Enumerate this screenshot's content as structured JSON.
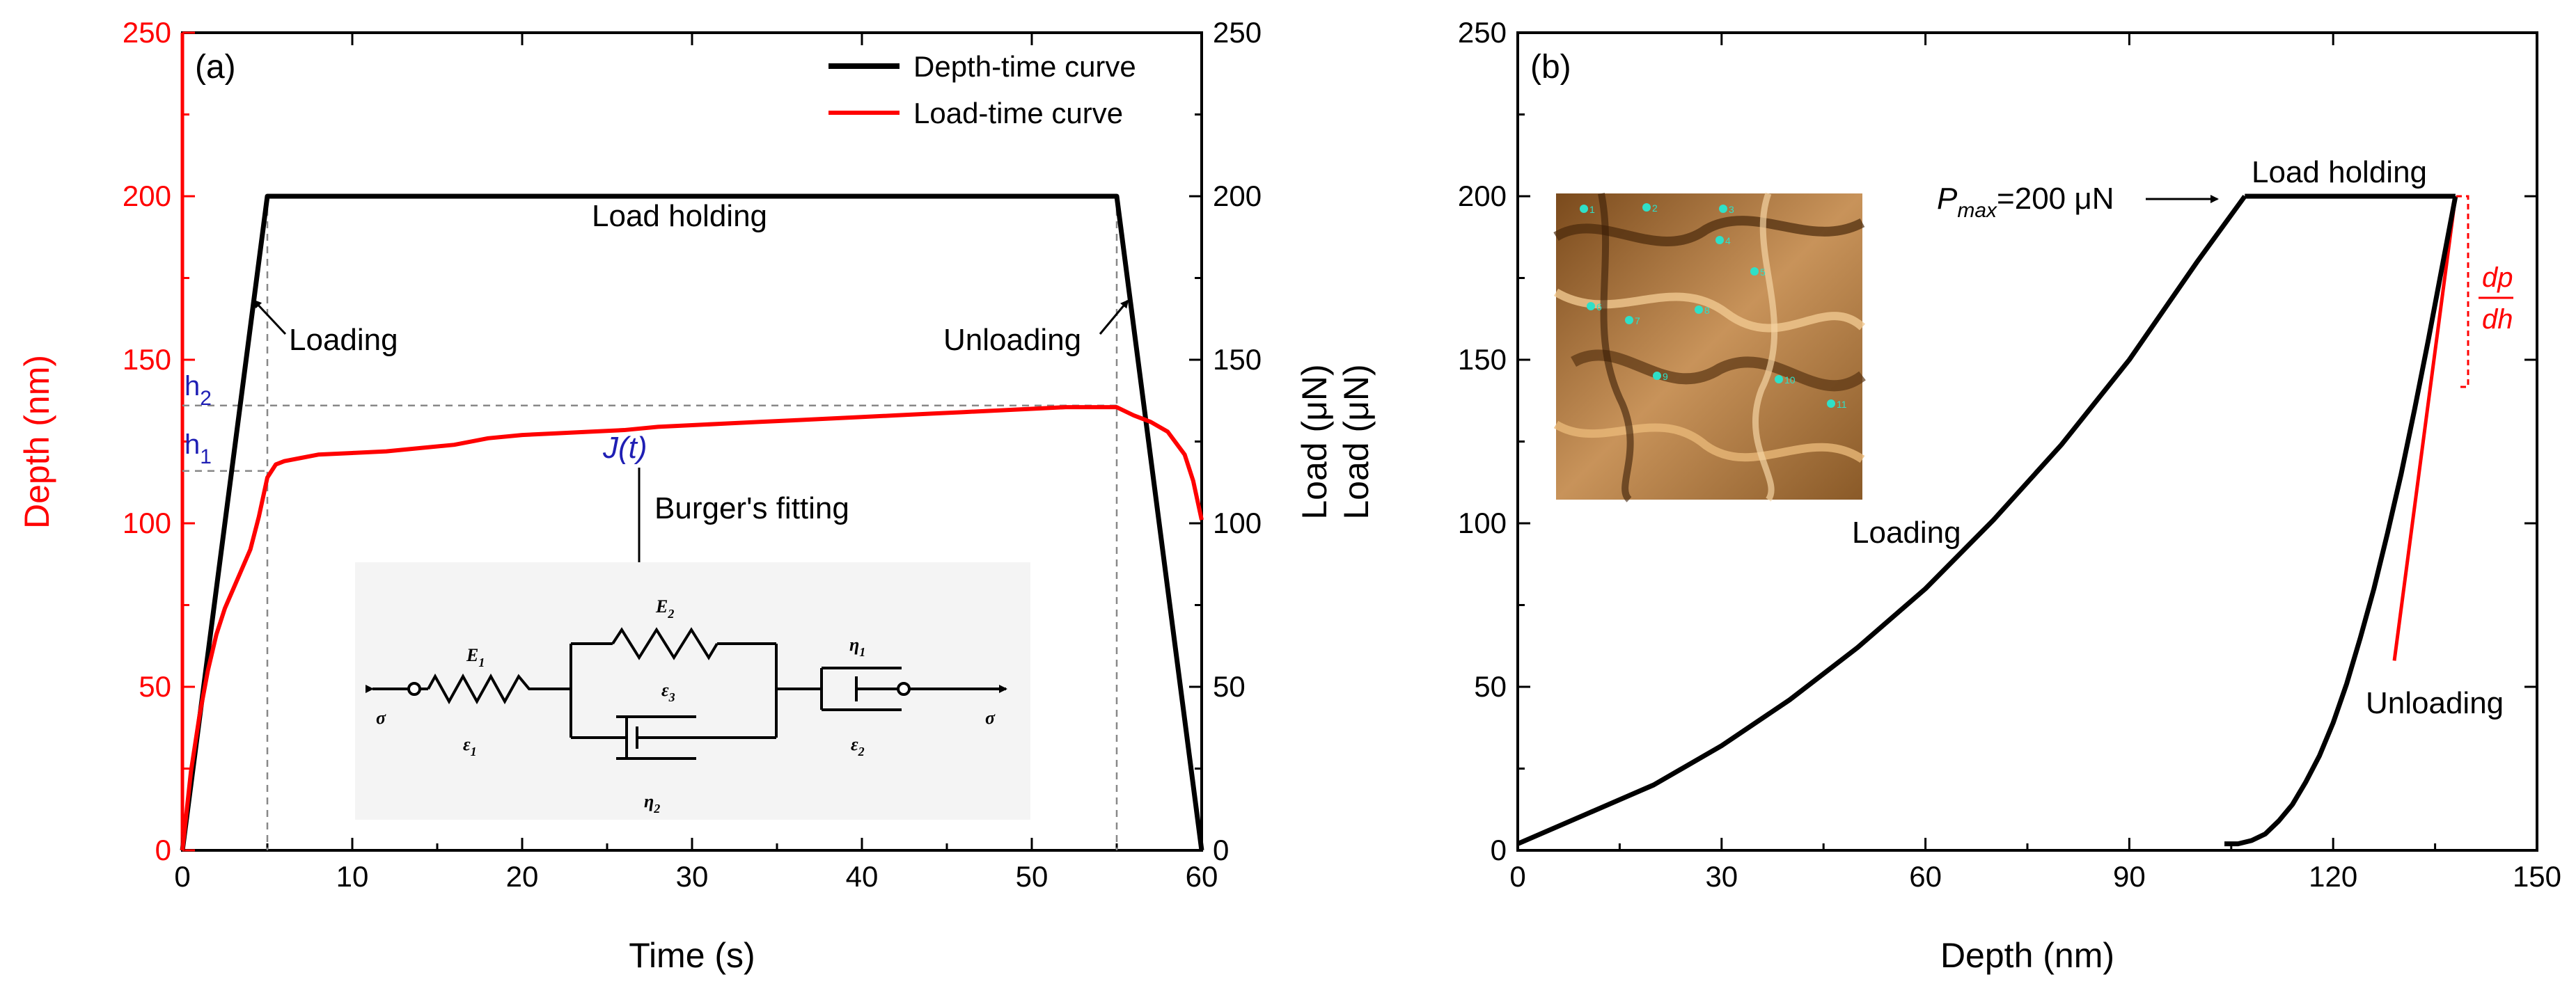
{
  "chart_data": [
    {
      "type": "line",
      "panel_label": "(a)",
      "xlabel": "Time (s)",
      "ylabel_left": "Depth (nm)",
      "ylabel_right": "Load (μN)",
      "ylabel_right_repeat": "Load (μN)",
      "xlim": [
        0,
        60
      ],
      "ylim_left": [
        0,
        250
      ],
      "ylim_right": [
        0,
        250
      ],
      "xticks": [
        "0",
        "10",
        "20",
        "30",
        "40",
        "50",
        "60"
      ],
      "yticks_left": [
        "0",
        "50",
        "100",
        "150",
        "200",
        "250"
      ],
      "yticks_right": [
        "0",
        "50",
        "100",
        "150",
        "200",
        "250"
      ],
      "left_axis_color": "#ff0000",
      "legend_position": "top-right",
      "series": [
        {
          "name": "Depth-time curve",
          "color": "#000000",
          "axis": "right",
          "x": [
            0,
            5,
            55,
            60
          ],
          "y": [
            0,
            200,
            200,
            0
          ]
        },
        {
          "name": "Load-time curve",
          "color": "#ff0000",
          "axis": "left",
          "x": [
            0,
            0.5,
            1,
            1.5,
            2,
            2.5,
            3,
            3.5,
            4,
            4.5,
            5,
            5.5,
            6,
            7,
            8,
            10,
            12,
            14,
            16,
            18,
            20,
            22,
            24,
            26,
            28,
            30,
            32,
            34,
            36,
            38,
            40,
            42,
            44,
            46,
            48,
            50,
            52,
            54,
            55,
            56,
            57,
            58,
            59,
            59.5,
            60
          ],
          "y": [
            0,
            24,
            41,
            55,
            66,
            74,
            80,
            86,
            92,
            102,
            114,
            118,
            119,
            120,
            121,
            121.5,
            122,
            123,
            124,
            126,
            127,
            127.5,
            128,
            128.5,
            129.5,
            130,
            130.5,
            131,
            131.5,
            132,
            132.5,
            133,
            133.5,
            134,
            134.5,
            135,
            135.5,
            135.5,
            135.5,
            133,
            131,
            128,
            121,
            113,
            101
          ]
        }
      ],
      "annotations": [
        {
          "text": "Load holding",
          "x": 30,
          "y": 193
        },
        {
          "text": "Loading",
          "x": 10.4,
          "y": 155
        },
        {
          "text": "Unloading",
          "x": 49,
          "y": 155
        },
        {
          "text": "J(t)",
          "x": 26.6,
          "y": 122,
          "color": "#1f1fb4"
        },
        {
          "text": "Burger's fitting",
          "x": 28,
          "y": 104
        }
      ],
      "reference_lines": {
        "h2": {
          "label": "h",
          "sub": "2",
          "y": 136
        },
        "h1": {
          "label": "h",
          "sub": "1",
          "y": 116
        },
        "label_color": "#1f1fb4",
        "vertical_x": [
          5,
          55
        ]
      },
      "inset_model": {
        "labels": {
          "E1": {
            "main": "E",
            "sub": "1"
          },
          "E2": {
            "main": "E",
            "sub": "2"
          },
          "eta1": {
            "main": "η",
            "sub": "1"
          },
          "eta2": {
            "main": "η",
            "sub": "2"
          },
          "eps1": {
            "main": "ε",
            "sub": "1"
          },
          "eps2": {
            "main": "ε",
            "sub": "2"
          },
          "eps3": {
            "main": "ε",
            "sub": "3"
          },
          "sigma": "σ"
        }
      }
    },
    {
      "type": "line",
      "panel_label": "(b)",
      "xlabel": "Depth (nm)",
      "ylabel": "",
      "xlim": [
        0,
        150
      ],
      "ylim": [
        0,
        250
      ],
      "xticks": [
        "0",
        "30",
        "60",
        "90",
        "120",
        "150"
      ],
      "yticks": [
        "0",
        "50",
        "100",
        "150",
        "200",
        "250"
      ],
      "series": [
        {
          "name": "Loading",
          "color": "#000000",
          "x": [
            0,
            10,
            20,
            30,
            40,
            50,
            60,
            70,
            80,
            90,
            100,
            107
          ],
          "y": [
            2,
            11,
            20,
            32,
            46,
            62,
            80,
            101,
            124,
            150,
            180,
            200
          ]
        },
        {
          "name": "Load holding",
          "color": "#000000",
          "x": [
            107,
            138
          ],
          "y": [
            200,
            200
          ]
        },
        {
          "name": "Unloading",
          "color": "#000000",
          "x": [
            138,
            136,
            134,
            132,
            130,
            128,
            126,
            124,
            122,
            120,
            118,
            116,
            114,
            112,
            110,
            108,
            106,
            104
          ],
          "y": [
            200,
            178,
            156,
            135,
            115,
            97,
            80,
            65,
            51,
            39,
            29,
            21,
            14,
            9,
            5,
            3,
            2,
            2
          ]
        }
      ],
      "tangent": {
        "color": "#ff0000",
        "x": [
          129,
          138
        ],
        "y": [
          58,
          200
        ]
      },
      "annotations": [
        {
          "text_main": "P",
          "text_sub": "max",
          "text_rest": "=200 μN",
          "x": 80,
          "y": 197
        },
        {
          "text": "Load holding",
          "x": 120,
          "y": 205
        },
        {
          "text": "Loading",
          "x": 49,
          "y": 97
        },
        {
          "text": "Unloading",
          "x": 124,
          "y": 45
        },
        {
          "text": "dp",
          "fraction_bottom": "dh",
          "x": 143,
          "y": 172,
          "color": "#ff0000"
        }
      ],
      "inset_image": {
        "label_markers": [
          "1",
          "2",
          "3",
          "4",
          "5",
          "6",
          "7",
          "8",
          "9",
          "10",
          "11"
        ]
      }
    }
  ]
}
